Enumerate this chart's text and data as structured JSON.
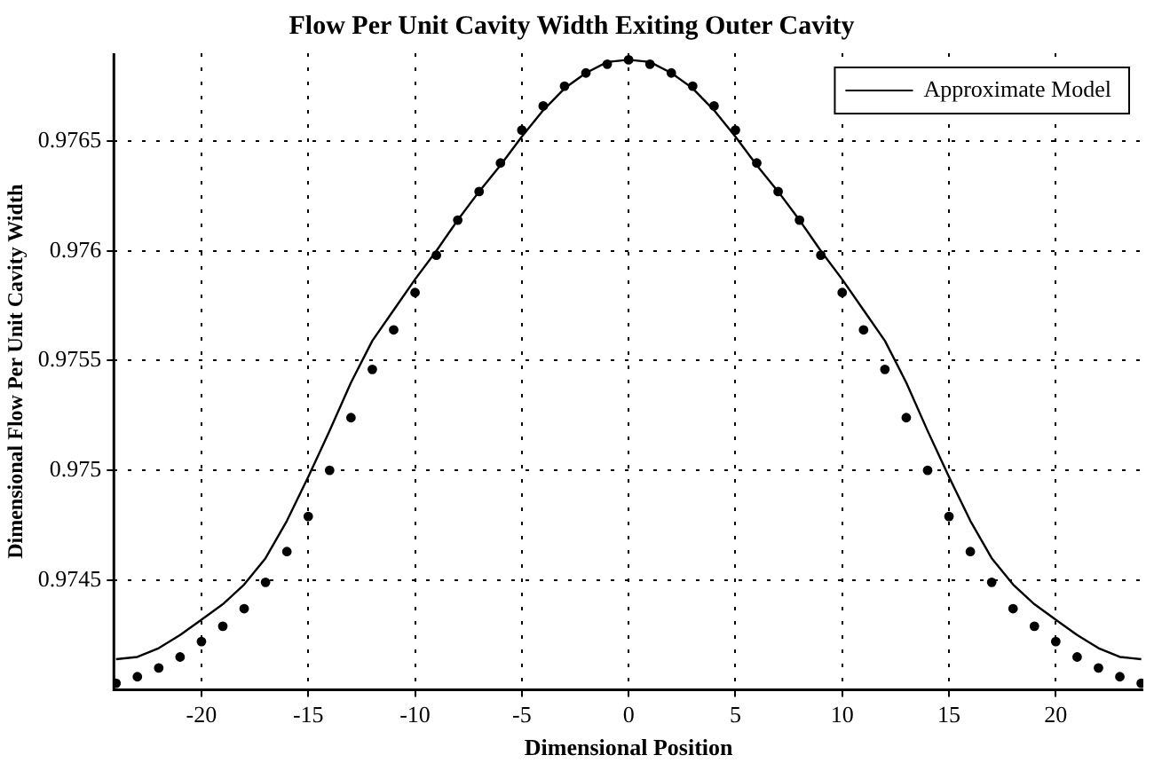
{
  "chart_data": {
    "type": "line",
    "title": "Flow Per Unit Cavity Width Exiting Outer Cavity",
    "xlabel": "Dimensional Position",
    "ylabel": "Dimensional Flow Per Unit Cavity Width",
    "x": [
      -24,
      -23,
      -22,
      -21,
      -20,
      -19,
      -18,
      -17,
      -16,
      -15,
      -14,
      -13,
      -12,
      -11,
      -10,
      -9,
      -8,
      -7,
      -6,
      -5,
      -4,
      -3,
      -2,
      -1,
      0,
      1,
      2,
      3,
      4,
      5,
      6,
      7,
      8,
      9,
      10,
      11,
      12,
      13,
      14,
      15,
      16,
      17,
      18,
      19,
      20,
      21,
      22,
      23,
      24
    ],
    "series": [
      {
        "name": "Approximate Model",
        "color": "#000000",
        "marker": "none",
        "line_style": "solid",
        "values": [
          0.97414,
          0.97415,
          0.97419,
          0.97425,
          0.97432,
          0.97439,
          0.97448,
          0.9746,
          0.97477,
          0.97497,
          0.97518,
          0.9754,
          0.97559,
          0.97573,
          0.97587,
          0.976,
          0.97614,
          0.97627,
          0.97639,
          0.97652,
          0.97664,
          0.97674,
          0.97681,
          0.97686,
          0.97687,
          0.97686,
          0.97681,
          0.97674,
          0.97664,
          0.97652,
          0.97639,
          0.97627,
          0.97614,
          0.976,
          0.97587,
          0.97573,
          0.97559,
          0.9754,
          0.97518,
          0.97497,
          0.97477,
          0.9746,
          0.97448,
          0.97439,
          0.97432,
          0.97425,
          0.97419,
          0.97415,
          0.97414
        ]
      },
      {
        "type": "scatter",
        "color": "#000000",
        "marker": "circle",
        "values": [
          0.97403,
          0.97406,
          0.9741,
          0.97415,
          0.97422,
          0.97429,
          0.97437,
          0.97449,
          0.97463,
          0.97479,
          0.975,
          0.97524,
          0.97546,
          0.97564,
          0.97581,
          0.97598,
          0.97614,
          0.97627,
          0.9764,
          0.97655,
          0.97666,
          0.97675,
          0.97681,
          0.97685,
          0.97687,
          0.97685,
          0.97681,
          0.97675,
          0.97666,
          0.97655,
          0.9764,
          0.97627,
          0.97614,
          0.97598,
          0.97581,
          0.97564,
          0.97546,
          0.97524,
          0.975,
          0.97479,
          0.97463,
          0.97449,
          0.97437,
          0.97429,
          0.97422,
          0.97415,
          0.9741,
          0.97406,
          0.97403
        ]
      }
    ],
    "xlim": [
      -24.1,
      24.1
    ],
    "xticks": [
      -20,
      -15,
      -10,
      -5,
      0,
      5,
      10,
      15,
      20
    ],
    "ylim": [
      0.974,
      0.9769
    ],
    "yticks": [
      0.9745,
      0.975,
      0.9755,
      0.976,
      0.9765
    ],
    "grid": true,
    "legend": "top right"
  }
}
